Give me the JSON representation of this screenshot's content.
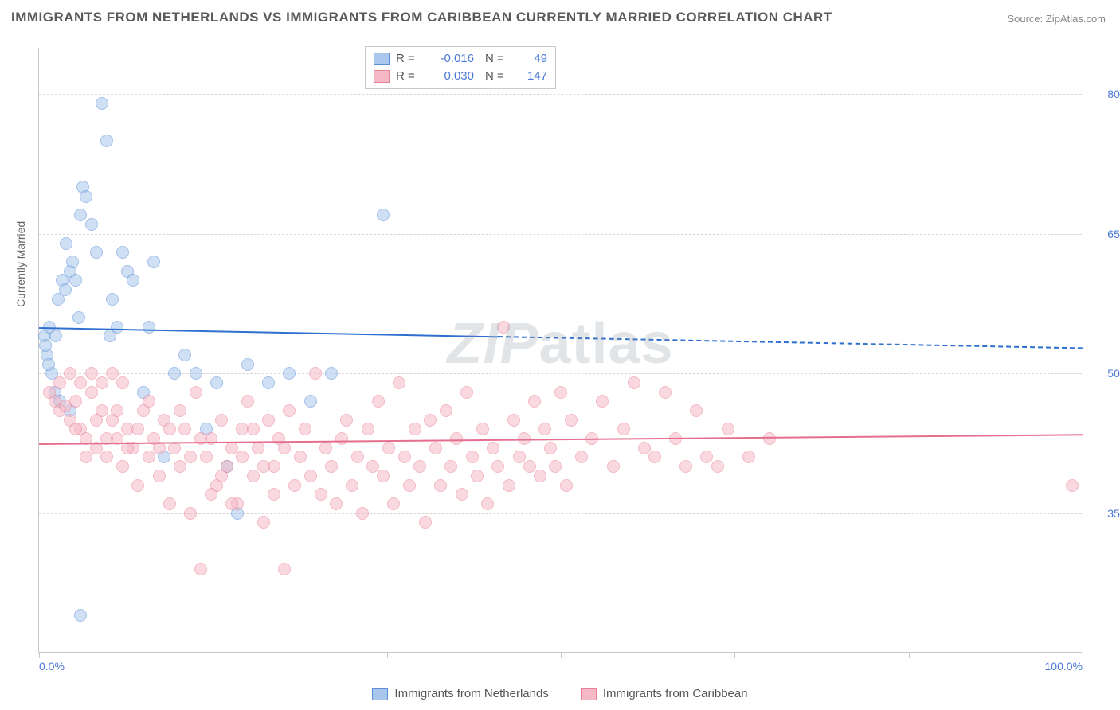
{
  "title": "IMMIGRANTS FROM NETHERLANDS VS IMMIGRANTS FROM CARIBBEAN CURRENTLY MARRIED CORRELATION CHART",
  "source": "Source: ZipAtlas.com",
  "yaxis_title": "Currently Married",
  "watermark": "ZIPatlas",
  "chart": {
    "type": "scatter",
    "xlim": [
      0,
      100
    ],
    "ylim": [
      20,
      85
    ],
    "yticks": [
      35.0,
      50.0,
      65.0,
      80.0
    ],
    "ytick_labels": [
      "35.0%",
      "50.0%",
      "65.0%",
      "80.0%"
    ],
    "xticks": [
      0,
      16.67,
      33.33,
      50,
      66.67,
      83.33,
      100
    ],
    "xtick_labels_shown": {
      "0": "0.0%",
      "100": "100.0%"
    },
    "background_color": "#ffffff",
    "grid_color": "#d8d8d8",
    "axis_color": "#c8c8c8",
    "tick_label_color": "#4a78d6",
    "point_radius": 8,
    "point_opacity": 0.55,
    "series": [
      {
        "name": "Immigrants from Netherlands",
        "color_fill": "#a9c7ec",
        "color_stroke": "#5b8fd6",
        "trend_color": "#2f6fd0",
        "R": "-0.016",
        "N": "49",
        "trend": {
          "y_at_x0": 55.0,
          "y_at_x100": 52.8,
          "solid_until_x": 44
        },
        "points": [
          [
            0.5,
            54
          ],
          [
            0.8,
            52
          ],
          [
            0.6,
            53
          ],
          [
            1,
            55
          ],
          [
            1.2,
            50
          ],
          [
            1.5,
            48
          ],
          [
            2,
            47
          ],
          [
            1.8,
            58
          ],
          [
            2.2,
            60
          ],
          [
            2.5,
            59
          ],
          [
            3,
            61
          ],
          [
            3.2,
            62
          ],
          [
            3.5,
            60
          ],
          [
            4,
            67
          ],
          [
            4.2,
            70
          ],
          [
            4.5,
            69
          ],
          [
            5,
            66
          ],
          [
            5.5,
            63
          ],
          [
            6,
            79
          ],
          [
            6.5,
            75
          ],
          [
            7,
            58
          ],
          [
            7.5,
            55
          ],
          [
            8,
            63
          ],
          [
            8.5,
            61
          ],
          [
            9,
            60
          ],
          [
            10,
            48
          ],
          [
            10.5,
            55
          ],
          [
            11,
            62
          ],
          [
            12,
            41
          ],
          [
            13,
            50
          ],
          [
            14,
            52
          ],
          [
            15,
            50
          ],
          [
            16,
            44
          ],
          [
            17,
            49
          ],
          [
            18,
            40
          ],
          [
            19,
            35
          ],
          [
            20,
            51
          ],
          [
            22,
            49
          ],
          [
            24,
            50
          ],
          [
            26,
            47
          ],
          [
            28,
            50
          ],
          [
            33,
            67
          ],
          [
            4,
            24
          ],
          [
            3,
            46
          ],
          [
            2.6,
            64
          ],
          [
            3.8,
            56
          ],
          [
            1.6,
            54
          ],
          [
            0.9,
            51
          ],
          [
            6.8,
            54
          ]
        ]
      },
      {
        "name": "Immigrants from Caribbean",
        "color_fill": "#f5b9c6",
        "color_stroke": "#e88298",
        "trend_color": "#e56e8e",
        "R": "0.030",
        "N": "147",
        "trend": {
          "y_at_x0": 42.5,
          "y_at_x100": 43.5,
          "solid_until_x": 100
        },
        "points": [
          [
            1,
            48
          ],
          [
            1.5,
            47
          ],
          [
            2,
            46
          ],
          [
            2.5,
            46.5
          ],
          [
            3,
            45
          ],
          [
            3.5,
            47
          ],
          [
            4,
            44
          ],
          [
            4.5,
            43
          ],
          [
            5,
            48
          ],
          [
            5.5,
            42
          ],
          [
            6,
            46
          ],
          [
            6.5,
            41
          ],
          [
            7,
            45
          ],
          [
            7.5,
            43
          ],
          [
            8,
            40
          ],
          [
            8.5,
            44
          ],
          [
            9,
            42
          ],
          [
            9.5,
            38
          ],
          [
            10,
            46
          ],
          [
            10.5,
            41
          ],
          [
            11,
            43
          ],
          [
            11.5,
            39
          ],
          [
            12,
            45
          ],
          [
            12.5,
            36
          ],
          [
            13,
            42
          ],
          [
            13.5,
            40
          ],
          [
            14,
            44
          ],
          [
            14.5,
            35
          ],
          [
            15,
            48
          ],
          [
            15.5,
            29
          ],
          [
            16,
            41
          ],
          [
            16.5,
            43
          ],
          [
            17,
            38
          ],
          [
            17.5,
            45
          ],
          [
            18,
            40
          ],
          [
            18.5,
            42
          ],
          [
            19,
            36
          ],
          [
            19.5,
            44
          ],
          [
            20,
            47
          ],
          [
            20.5,
            39
          ],
          [
            21,
            42
          ],
          [
            21.5,
            34
          ],
          [
            22,
            45
          ],
          [
            22.5,
            40
          ],
          [
            23,
            43
          ],
          [
            23.5,
            29
          ],
          [
            24,
            46
          ],
          [
            24.5,
            38
          ],
          [
            25,
            41
          ],
          [
            25.5,
            44
          ],
          [
            26,
            39
          ],
          [
            26.5,
            50
          ],
          [
            27,
            37
          ],
          [
            27.5,
            42
          ],
          [
            28,
            40
          ],
          [
            28.5,
            36
          ],
          [
            29,
            43
          ],
          [
            29.5,
            45
          ],
          [
            30,
            38
          ],
          [
            30.5,
            41
          ],
          [
            31,
            35
          ],
          [
            31.5,
            44
          ],
          [
            32,
            40
          ],
          [
            32.5,
            47
          ],
          [
            33,
            39
          ],
          [
            33.5,
            42
          ],
          [
            34,
            36
          ],
          [
            34.5,
            49
          ],
          [
            35,
            41
          ],
          [
            35.5,
            38
          ],
          [
            36,
            44
          ],
          [
            36.5,
            40
          ],
          [
            37,
            34
          ],
          [
            37.5,
            45
          ],
          [
            38,
            42
          ],
          [
            38.5,
            38
          ],
          [
            39,
            46
          ],
          [
            39.5,
            40
          ],
          [
            40,
            43
          ],
          [
            40.5,
            37
          ],
          [
            41,
            48
          ],
          [
            41.5,
            41
          ],
          [
            42,
            39
          ],
          [
            42.5,
            44
          ],
          [
            43,
            36
          ],
          [
            43.5,
            42
          ],
          [
            44,
            40
          ],
          [
            44.5,
            55
          ],
          [
            45,
            38
          ],
          [
            45.5,
            45
          ],
          [
            46,
            41
          ],
          [
            46.5,
            43
          ],
          [
            47,
            40
          ],
          [
            47.5,
            47
          ],
          [
            48,
            39
          ],
          [
            48.5,
            44
          ],
          [
            49,
            42
          ],
          [
            49.5,
            40
          ],
          [
            50,
            48
          ],
          [
            50.5,
            38
          ],
          [
            51,
            45
          ],
          [
            52,
            41
          ],
          [
            53,
            43
          ],
          [
            54,
            47
          ],
          [
            55,
            40
          ],
          [
            56,
            44
          ],
          [
            57,
            49
          ],
          [
            58,
            42
          ],
          [
            59,
            41
          ],
          [
            60,
            48
          ],
          [
            61,
            43
          ],
          [
            62,
            40
          ],
          [
            63,
            46
          ],
          [
            64,
            41
          ],
          [
            65,
            40
          ],
          [
            66,
            44
          ],
          [
            68,
            41
          ],
          [
            70,
            43
          ],
          [
            99,
            38
          ],
          [
            2,
            49
          ],
          [
            3,
            50
          ],
          [
            4,
            49
          ],
          [
            5,
            50
          ],
          [
            6,
            49
          ],
          [
            7,
            50
          ],
          [
            8,
            49
          ],
          [
            3.5,
            44
          ],
          [
            4.5,
            41
          ],
          [
            5.5,
            45
          ],
          [
            6.5,
            43
          ],
          [
            7.5,
            46
          ],
          [
            8.5,
            42
          ],
          [
            9.5,
            44
          ],
          [
            10.5,
            47
          ],
          [
            11.5,
            42
          ],
          [
            12.5,
            44
          ],
          [
            13.5,
            46
          ],
          [
            14.5,
            41
          ],
          [
            15.5,
            43
          ],
          [
            16.5,
            37
          ],
          [
            17.5,
            39
          ],
          [
            18.5,
            36
          ],
          [
            19.5,
            41
          ],
          [
            20.5,
            44
          ],
          [
            21.5,
            40
          ],
          [
            22.5,
            37
          ],
          [
            23.5,
            42
          ]
        ]
      }
    ]
  },
  "legend_bottom": [
    {
      "label": "Immigrants from Netherlands",
      "fill": "#a9c7ec",
      "stroke": "#5b8fd6"
    },
    {
      "label": "Immigrants from Caribbean",
      "fill": "#f5b9c6",
      "stroke": "#e88298"
    }
  ]
}
